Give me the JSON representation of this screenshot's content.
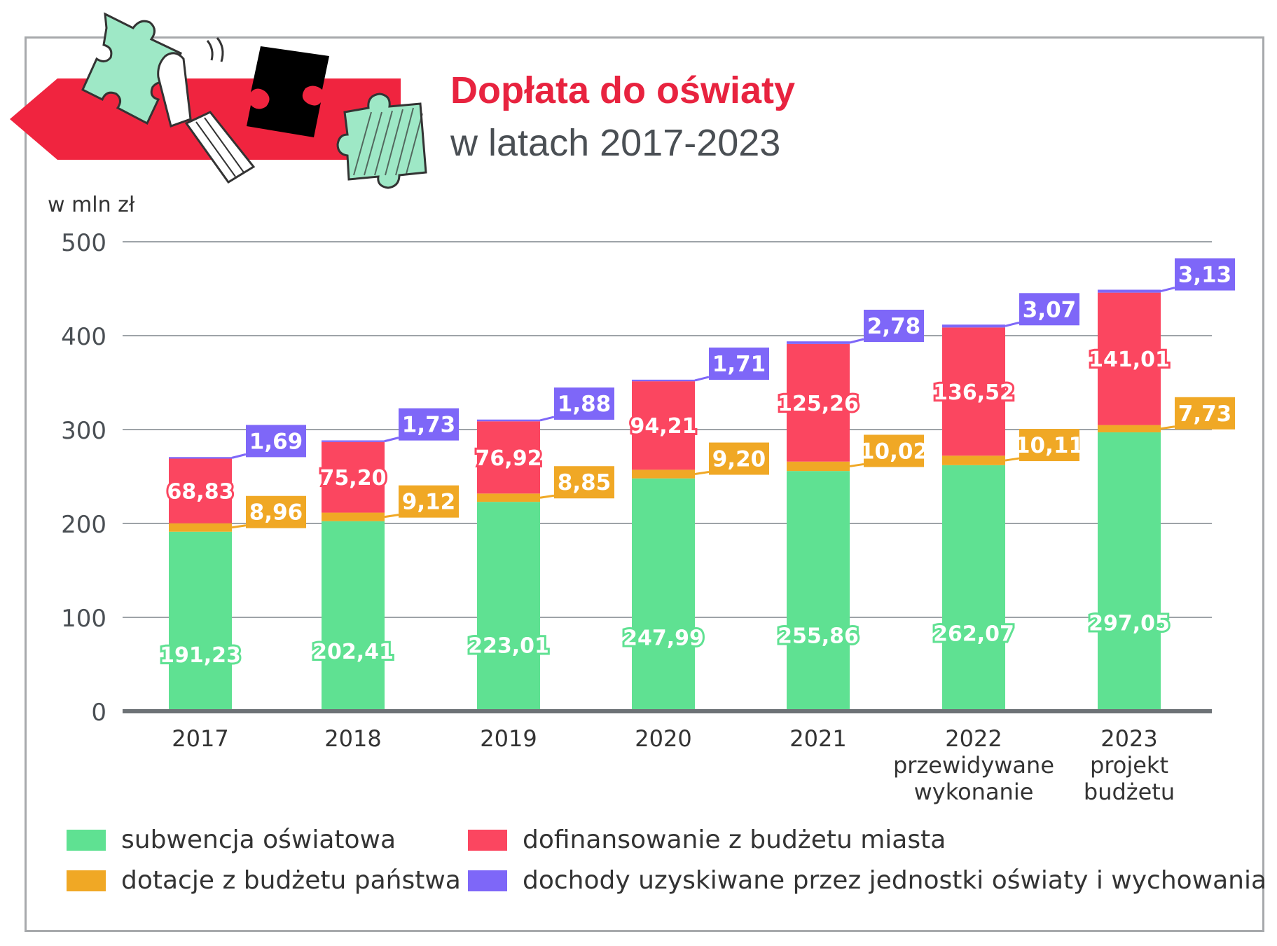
{
  "title": "Dopłata do oświaty",
  "subtitle": "w latach 2017-2023",
  "colors": {
    "subwencja": "#5fe192",
    "dotacje": "#f0a825",
    "dofinansowanie": "#fb4660",
    "dochody": "#7e67f8",
    "accent_red": "#e8233f",
    "grid": "#9ea3a8",
    "axis": "#6d7276",
    "text": "#4a4f54"
  },
  "illustration": {
    "icons": [
      "puzzle-piece-icon",
      "hand-icon",
      "red-arrow-banner"
    ]
  },
  "chart_data": {
    "type": "bar",
    "stacked": true,
    "ylabel": "w mln zł",
    "ylim": [
      0,
      500
    ],
    "yticks": [
      "0",
      "100",
      "200",
      "300",
      "400",
      "500"
    ],
    "grid": true,
    "legend_placement": "bottom",
    "categories": [
      [
        "2017"
      ],
      [
        "2018"
      ],
      [
        "2019"
      ],
      [
        "2020"
      ],
      [
        "2021"
      ],
      [
        "2022",
        "przewidywane",
        "wykonanie"
      ],
      [
        "2023",
        "projekt",
        "budżetu"
      ]
    ],
    "series": [
      {
        "name": "subwencja oświatowa",
        "key": "subwencja",
        "values": [
          191.23,
          202.41,
          223.01,
          247.99,
          255.86,
          262.07,
          297.05
        ],
        "labels": [
          "191,23",
          "202,41",
          "223,01",
          "247,99",
          "255,86",
          "262,07",
          "297,05"
        ]
      },
      {
        "name": "dotacje z budżetu państwa",
        "key": "dotacje",
        "values": [
          8.96,
          9.12,
          8.85,
          9.2,
          10.02,
          10.11,
          7.73
        ],
        "labels": [
          "8,96",
          "9,12",
          "8,85",
          "9,20",
          "10,02",
          "10,11",
          "7,73"
        ]
      },
      {
        "name": "dofinansowanie z budżetu miasta",
        "key": "dofinansowanie",
        "values": [
          68.83,
          75.2,
          76.92,
          94.21,
          125.26,
          136.52,
          141.01
        ],
        "labels": [
          "68,83",
          "75,20",
          "76,92",
          "94,21",
          "125,26",
          "136,52",
          "141,01"
        ]
      },
      {
        "name": "dochody uzyskiwane przez jednostki oświaty i wychowania",
        "key": "dochody",
        "values": [
          1.69,
          1.73,
          1.88,
          1.71,
          2.78,
          3.07,
          3.13
        ],
        "labels": [
          "1,69",
          "1,73",
          "1,88",
          "1,71",
          "2,78",
          "3,07",
          "3,13"
        ]
      }
    ],
    "legend": [
      {
        "key": "subwencja",
        "label": "subwencja oświatowa"
      },
      {
        "key": "dofinansowanie",
        "label": "dofinansowanie z budżetu miasta"
      },
      {
        "key": "dotacje",
        "label": "dotacje z budżetu państwa"
      },
      {
        "key": "dochody",
        "label": "dochody uzyskiwane przez jednostki oświaty i wychowania"
      }
    ]
  }
}
